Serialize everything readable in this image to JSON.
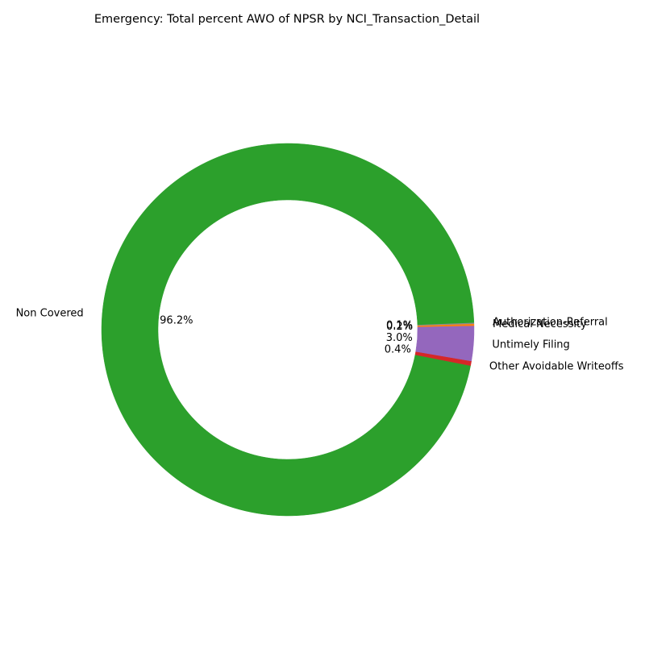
{
  "chart_data": {
    "type": "pie",
    "donut": true,
    "title": "Emergency: Total percent AWO of NPSR by NCI_Transaction_Detail",
    "slices": [
      {
        "label": "Medical Necessity",
        "pct_label": "0.2%",
        "value": 0.2,
        "color": "#ff7f0e"
      },
      {
        "label": "Authorization-Referral",
        "pct_label": "0.1%",
        "value": 0.1,
        "color": "#8c8c8c"
      },
      {
        "label": "Non Covered",
        "pct_label": "96.2%",
        "value": 96.2,
        "color": "#2ca02c"
      },
      {
        "label": "Other Avoidable Writeoffs",
        "pct_label": "0.4%",
        "value": 0.4,
        "color": "#d62728"
      },
      {
        "label": "Untimely Filing",
        "pct_label": "3.0%",
        "value": 3.0,
        "color": "#9467bd"
      }
    ]
  }
}
